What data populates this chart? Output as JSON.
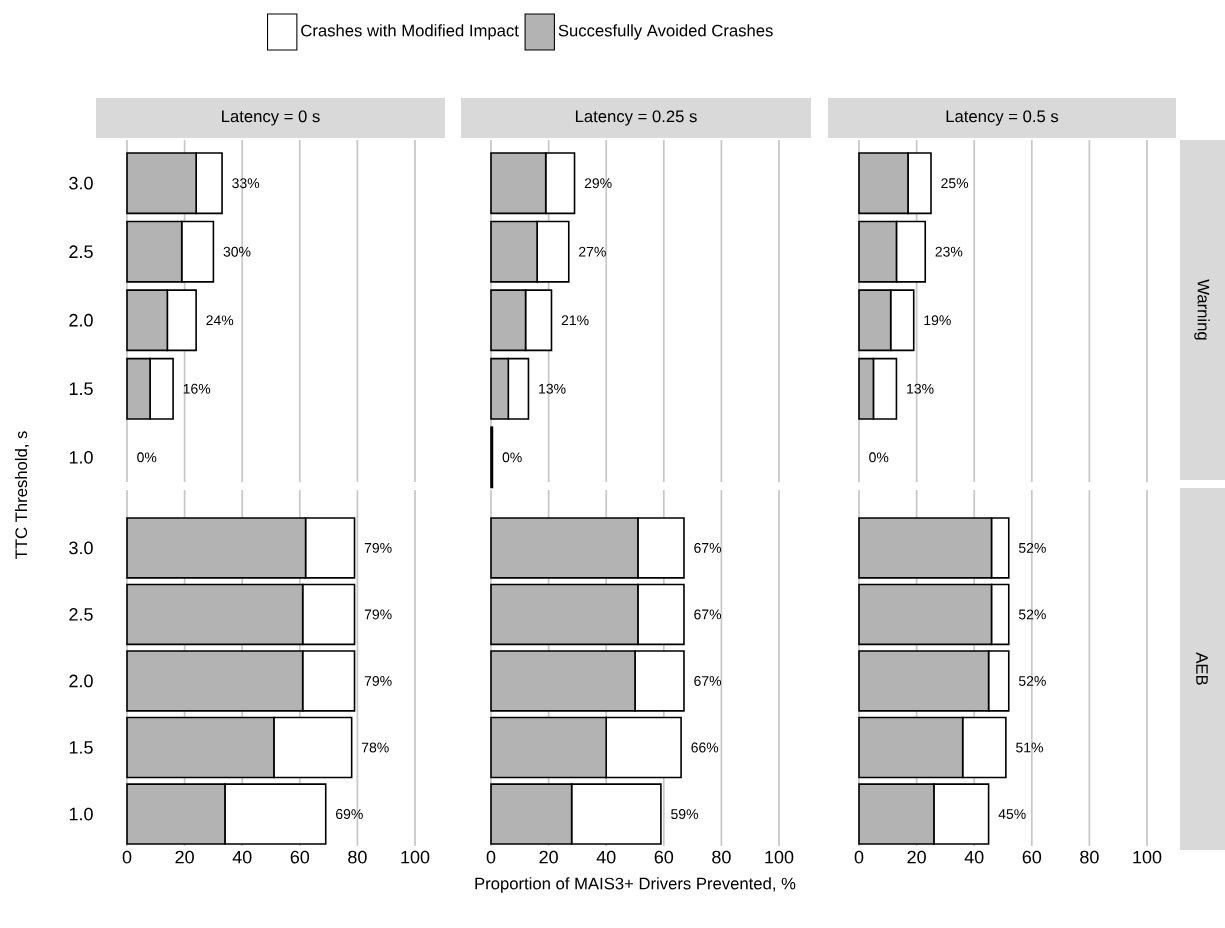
{
  "chart_data": [
    {
      "type": "bar",
      "orientation": "horizontal",
      "stacked": true,
      "title": "Latency = 0 s",
      "ylabel": "TTC Threshold, s",
      "categories": [
        "3.0",
        "2.5",
        "2.0",
        "1.5",
        "1.0"
      ],
      "series": [
        {
          "name": "Succesfully Avoided Crashes",
          "color": "#b3b3b3",
          "values": [
            24,
            19,
            14,
            8,
            0
          ]
        },
        {
          "name": "Crashes with Modified Impact",
          "color": "#ffffff",
          "values": [
            9,
            11,
            10,
            8,
            0
          ]
        }
      ],
      "totals": [
        "33%",
        "30%",
        "24%",
        "16%",
        "0%"
      ],
      "xlim": [
        0,
        100
      ],
      "xticks": [
        0,
        20,
        40,
        60,
        80,
        100
      ],
      "grid": "x",
      "legend": "top",
      "tick_labels": "y"
    },
    {
      "type": "bar",
      "orientation": "horizontal",
      "stacked": true,
      "title": "Latency = 0.25 s",
      "categories": [
        "3.0",
        "2.5",
        "2.0",
        "1.5",
        "1.0"
      ],
      "series": [
        {
          "color": "#b3b3b3",
          "values": [
            19,
            16,
            12,
            6,
            0.5
          ]
        },
        {
          "color": "#ffffff",
          "values": [
            10,
            11,
            9,
            7,
            0
          ]
        }
      ],
      "totals": [
        "29%",
        "27%",
        "21%",
        "13%",
        "0%"
      ],
      "xlim": [
        0,
        100
      ],
      "xticks": [
        0,
        20,
        40,
        60,
        80,
        100
      ],
      "grid": "x",
      "tick_labels": false
    },
    {
      "type": "bar",
      "orientation": "horizontal",
      "stacked": true,
      "title": "Latency = 0.5 s",
      "annotations": [
        "Warning"
      ],
      "categories": [
        "3.0",
        "2.5",
        "2.0",
        "1.5",
        "1.0"
      ],
      "series": [
        {
          "color": "#b3b3b3",
          "values": [
            17,
            13,
            11,
            5,
            0
          ]
        },
        {
          "color": "#ffffff",
          "values": [
            8,
            10,
            8,
            8,
            0
          ]
        }
      ],
      "totals": [
        "25%",
        "23%",
        "19%",
        "13%",
        "0%"
      ],
      "xlim": [
        0,
        100
      ],
      "xticks": [
        0,
        20,
        40,
        60,
        80,
        100
      ],
      "grid": "x",
      "tick_labels": false
    },
    {
      "type": "bar",
      "orientation": "horizontal",
      "stacked": true,
      "categories": [
        "3.0",
        "2.5",
        "2.0",
        "1.5",
        "1.0"
      ],
      "series": [
        {
          "color": "#b3b3b3",
          "values": [
            62,
            61,
            61,
            51,
            34
          ]
        },
        {
          "color": "#ffffff",
          "values": [
            17,
            18,
            18,
            27,
            35
          ]
        }
      ],
      "totals": [
        "79%",
        "79%",
        "79%",
        "78%",
        "69%"
      ],
      "xlim": [
        0,
        100
      ],
      "xticks": [
        0,
        20,
        40,
        60,
        80,
        100
      ],
      "grid": "x"
    },
    {
      "type": "bar",
      "orientation": "horizontal",
      "stacked": true,
      "xlabel": "Proportion of MAIS3+ Drivers Prevented, %",
      "categories": [
        "3.0",
        "2.5",
        "2.0",
        "1.5",
        "1.0"
      ],
      "series": [
        {
          "color": "#b3b3b3",
          "values": [
            51,
            51,
            50,
            40,
            28
          ]
        },
        {
          "color": "#ffffff",
          "values": [
            16,
            16,
            17,
            26,
            31
          ]
        }
      ],
      "totals": [
        "67%",
        "67%",
        "67%",
        "66%",
        "59%"
      ],
      "xlim": [
        0,
        100
      ],
      "xticks": [
        0,
        20,
        40,
        60,
        80,
        100
      ],
      "grid": "x",
      "tick_labels": "x"
    },
    {
      "type": "bar",
      "orientation": "horizontal",
      "stacked": true,
      "annotations": [
        "AEB"
      ],
      "categories": [
        "3.0",
        "2.5",
        "2.0",
        "1.5",
        "1.0"
      ],
      "series": [
        {
          "color": "#b3b3b3",
          "values": [
            46,
            46,
            45,
            36,
            26
          ]
        },
        {
          "color": "#ffffff",
          "values": [
            6,
            6,
            7,
            15,
            19
          ]
        }
      ],
      "totals": [
        "52%",
        "52%",
        "52%",
        "51%",
        "45%"
      ],
      "xlim": [
        0,
        100
      ],
      "xticks": [
        0,
        20,
        40,
        60,
        80,
        100
      ],
      "grid": "x",
      "tick_labels": "x"
    }
  ]
}
